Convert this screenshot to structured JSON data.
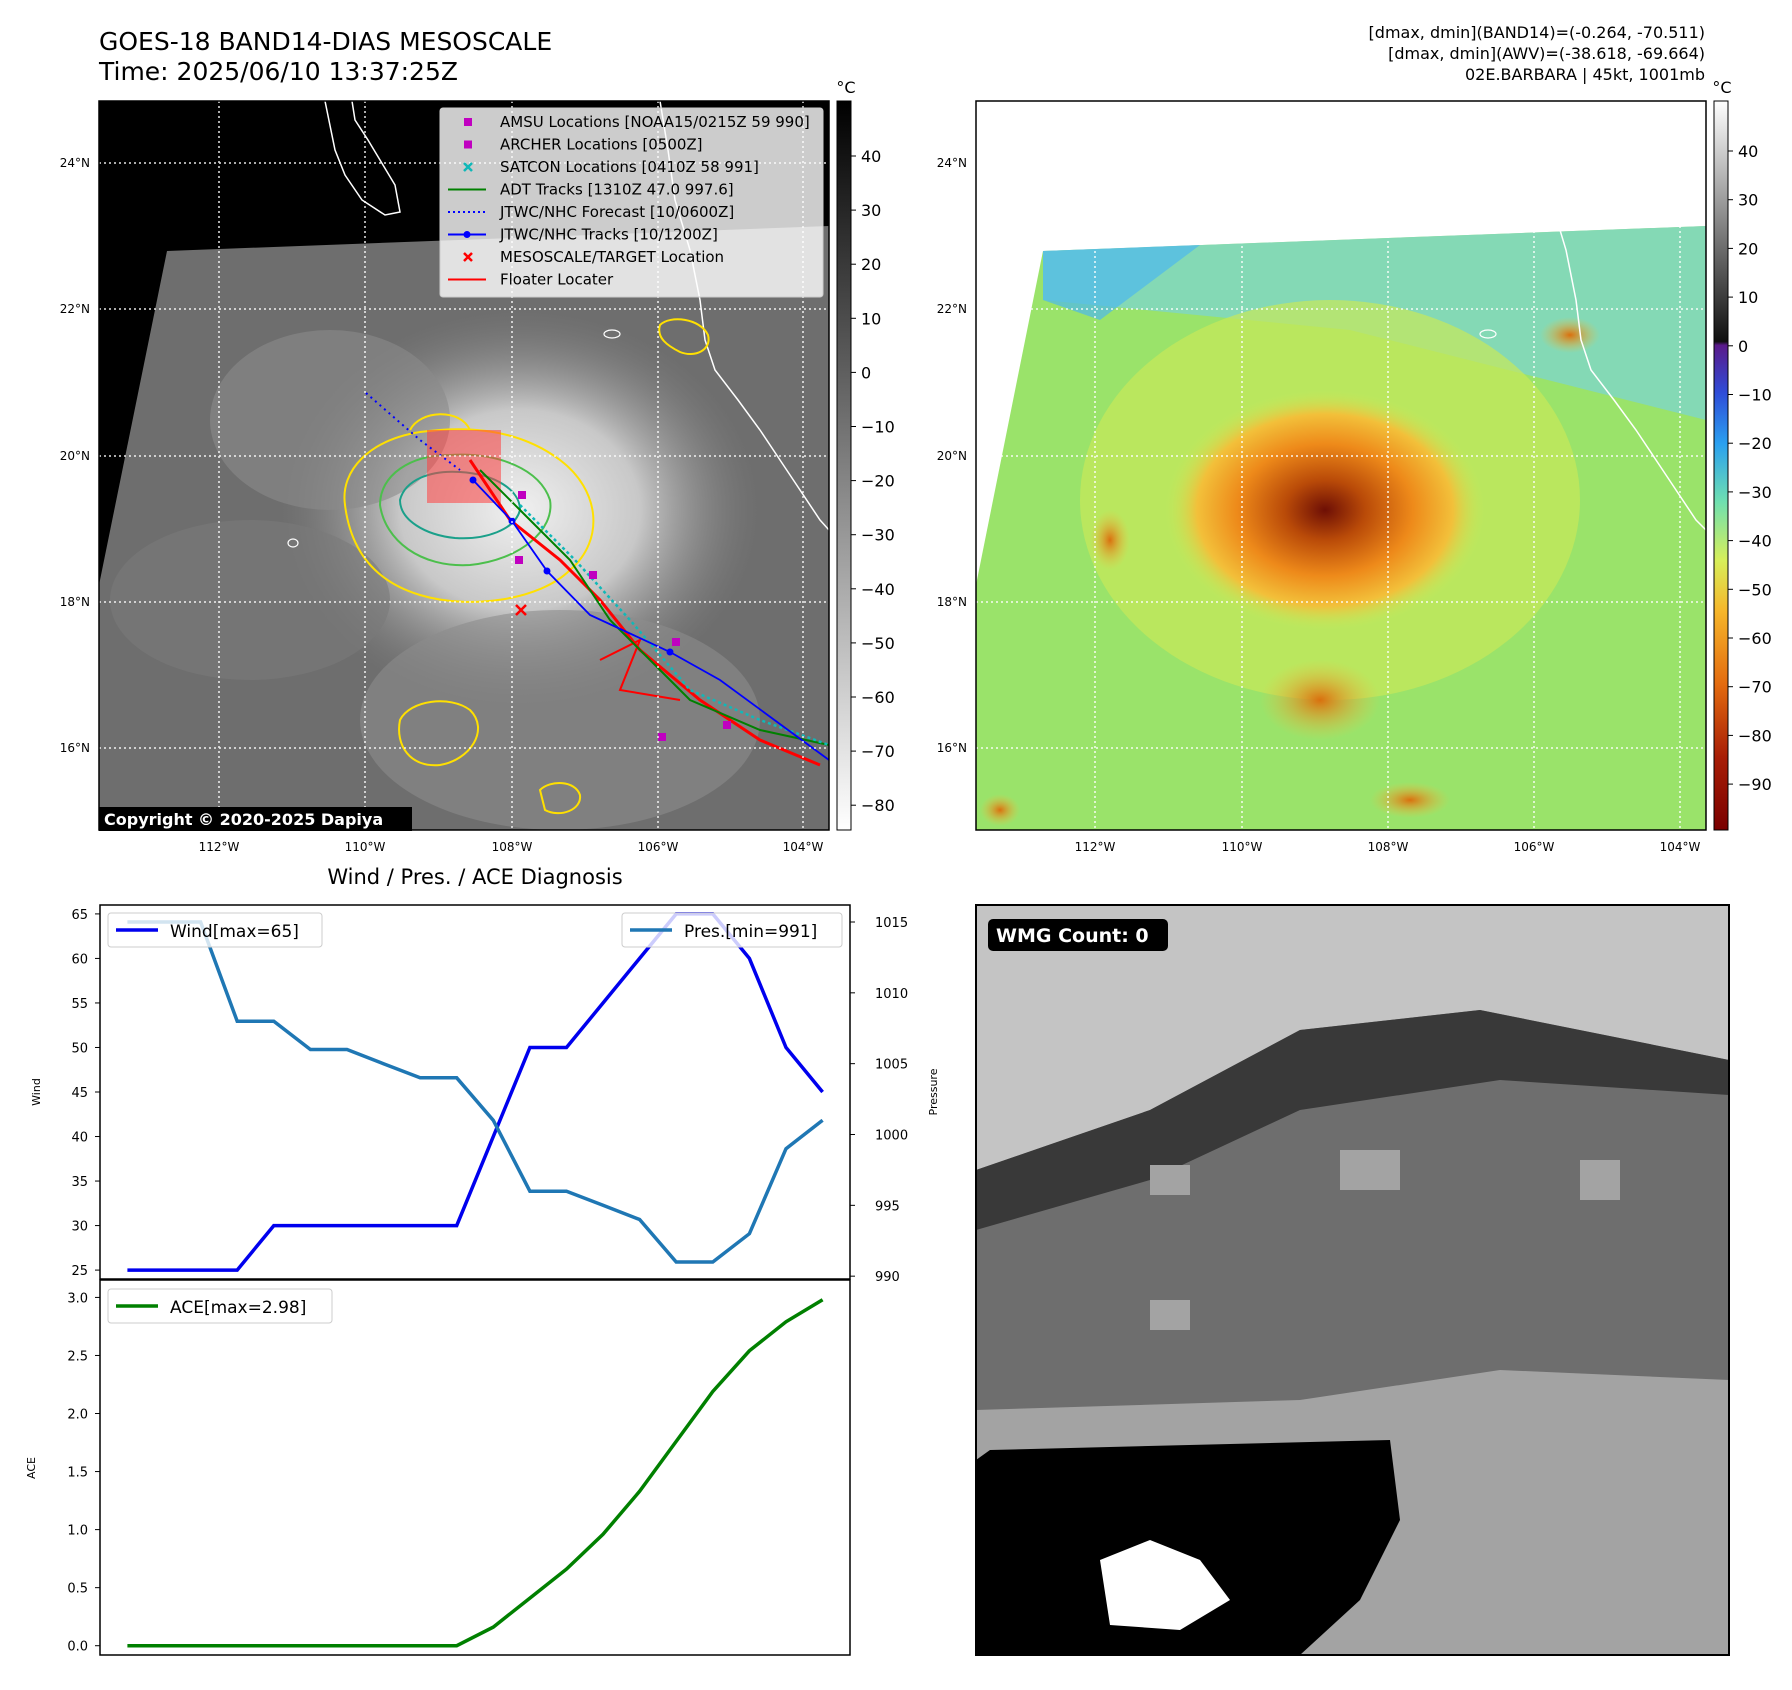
{
  "header": {
    "title": "GOES-18 BAND14-DIAS MESOSCALE",
    "time": "Time: 2025/06/10 13:37:25Z",
    "right_line1": "[dmax, dmin](BAND14)=(-0.264, -70.511)",
    "right_line2": "[dmax, dmin](AWV)=(-38.618, -69.664)",
    "right_line3": "02E.BARBARA | 45kt, 1001mb",
    "copyright": "Copyright © 2020-2025 Dapiya"
  },
  "map": {
    "lat_ticks": [
      "24°N",
      "22°N",
      "20°N",
      "18°N",
      "16°N"
    ],
    "lon_ticks": [
      "112°W",
      "110°W",
      "108°W",
      "106°W",
      "104°W"
    ],
    "colorbar_left": {
      "unit": "°C",
      "ticks": [
        "40",
        "30",
        "20",
        "10",
        "0",
        "−10",
        "−20",
        "−30",
        "−40",
        "−50",
        "−60",
        "−70",
        "−80"
      ]
    },
    "colorbar_right": {
      "unit": "°C",
      "ticks": [
        "40",
        "30",
        "20",
        "10",
        "0",
        "−10",
        "−20",
        "−30",
        "−40",
        "−50",
        "−60",
        "−70",
        "−80",
        "−90"
      ]
    },
    "legend": [
      {
        "label": "AMSU Locations [NOAA15/0215Z 59 990]",
        "color": "#c000c0",
        "marker": "square"
      },
      {
        "label": "ARCHER Locations [0500Z]",
        "color": "#c000c0",
        "marker": "square"
      },
      {
        "label": "SATCON Locations [0410Z 58 991]",
        "color": "#10b8b8",
        "marker": "x"
      },
      {
        "label": "ADT Tracks [1310Z 47.0 997.6]",
        "color": "#008000",
        "marker": "line"
      },
      {
        "label": "JTWC/NHC Forecast [10/0600Z]",
        "color": "#0000ff",
        "marker": "dotted"
      },
      {
        "label": "JTWC/NHC Tracks [10/1200Z]",
        "color": "#0000ff",
        "marker": "line-dot"
      },
      {
        "label": "MESOSCALE/TARGET Location",
        "color": "#ff0000",
        "marker": "x"
      },
      {
        "label": "Floater Locater",
        "color": "#ff0000",
        "marker": "line"
      }
    ]
  },
  "wmg": {
    "label": "WMG Count: 0"
  },
  "chart_data": [
    {
      "type": "line",
      "title": "Wind / Pres. / ACE Diagnosis",
      "ylabel": "Wind",
      "y2label": "Pressure",
      "x": [
        0,
        1,
        2,
        3,
        4,
        5,
        6,
        7,
        8,
        9,
        10,
        11,
        12,
        13,
        14,
        15,
        16,
        17,
        18,
        19
      ],
      "ylim": [
        24,
        66
      ],
      "y2lim": [
        989.8,
        1016.2
      ],
      "yticks": [
        25,
        30,
        35,
        40,
        45,
        50,
        55,
        60,
        65
      ],
      "y2ticks": [
        990,
        995,
        1000,
        1005,
        1010,
        1015
      ],
      "series": [
        {
          "name": "Wind[max=65]",
          "axis": "left",
          "color": "#0000ee",
          "values": [
            25,
            25,
            25,
            25,
            30,
            30,
            30,
            30,
            30,
            30,
            40,
            50,
            50,
            55,
            60,
            65,
            65,
            60,
            50,
            45
          ]
        },
        {
          "name": "Pres.[min=991]",
          "axis": "right",
          "color": "#1f77b4",
          "values": [
            1015,
            1015,
            1015,
            1008,
            1008,
            1006,
            1006,
            1005,
            1004,
            1004,
            1001,
            996,
            996,
            995,
            994,
            991,
            991,
            993,
            999,
            1001
          ]
        }
      ]
    },
    {
      "type": "line",
      "ylabel": "ACE",
      "x": [
        0,
        1,
        2,
        3,
        4,
        5,
        6,
        7,
        8,
        9,
        10,
        11,
        12,
        13,
        14,
        15,
        16,
        17,
        18,
        19
      ],
      "ylim": [
        -0.08,
        3.15
      ],
      "yticks": [
        "0.0",
        "0.5",
        "1.0",
        "1.5",
        "2.0",
        "2.5",
        "3.0"
      ],
      "series": [
        {
          "name": "ACE[max=2.98]",
          "color": "#008000",
          "values": [
            0,
            0,
            0,
            0,
            0,
            0,
            0,
            0,
            0,
            0,
            0.16,
            0.41,
            0.66,
            0.96,
            1.33,
            1.76,
            2.19,
            2.54,
            2.79,
            2.98
          ]
        }
      ]
    }
  ]
}
